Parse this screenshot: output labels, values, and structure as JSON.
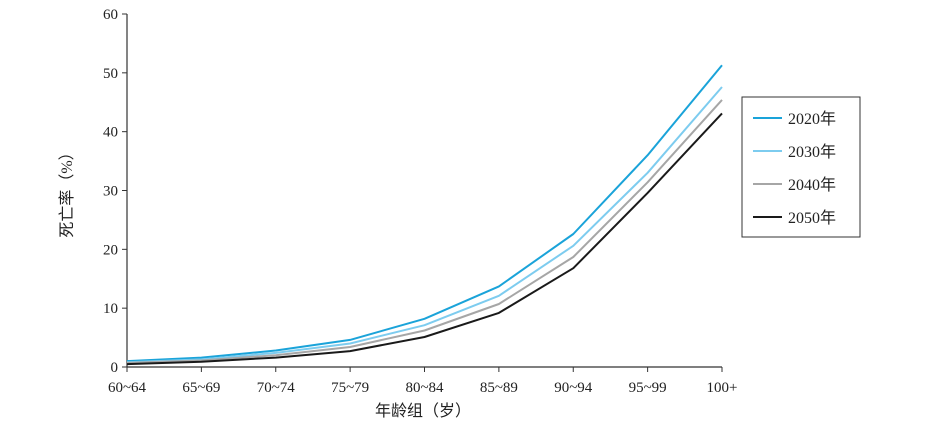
{
  "chart_data": {
    "type": "line",
    "xlabel": "年龄组（岁）",
    "ylabel": "死亡率（%）",
    "categories": [
      "60~64",
      "65~69",
      "70~74",
      "75~79",
      "80~84",
      "85~89",
      "90~94",
      "95~99",
      "100+"
    ],
    "ylim": [
      0,
      60
    ],
    "yticks": [
      0,
      10,
      20,
      30,
      40,
      50,
      60
    ],
    "grid": false,
    "legend_position": "right",
    "series": [
      {
        "name": "2020年",
        "color": "#1aa3d9",
        "values": [
          1.0,
          1.6,
          2.8,
          4.6,
          8.2,
          13.7,
          22.6,
          36.0,
          51.3
        ]
      },
      {
        "name": "2030年",
        "color": "#7dccef",
        "values": [
          0.8,
          1.3,
          2.4,
          4.0,
          7.1,
          12.1,
          20.6,
          33.0,
          47.6
        ]
      },
      {
        "name": "2040年",
        "color": "#a6a6a6",
        "values": [
          0.7,
          1.1,
          2.0,
          3.4,
          6.2,
          10.7,
          18.7,
          31.4,
          45.4
        ]
      },
      {
        "name": "2050年",
        "color": "#1a1a1a",
        "values": [
          0.5,
          0.9,
          1.6,
          2.7,
          5.1,
          9.2,
          16.8,
          29.6,
          43.1
        ]
      }
    ]
  }
}
